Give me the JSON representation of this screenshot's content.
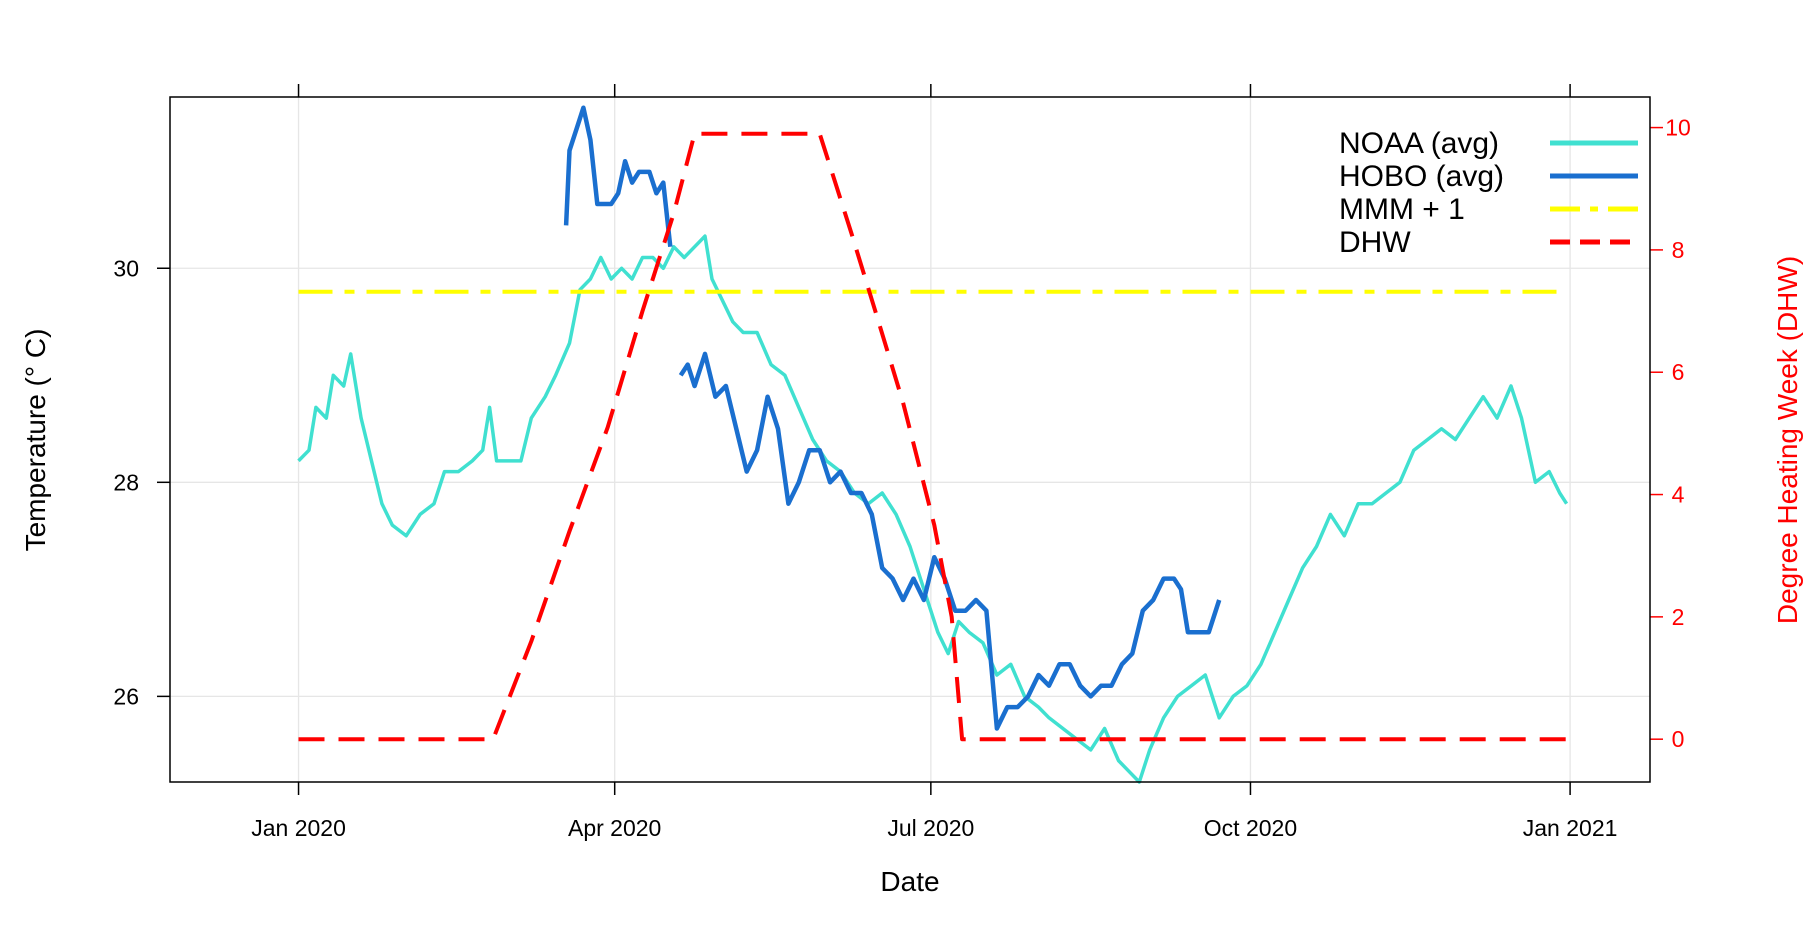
{
  "chart_data": {
    "type": "line",
    "xlabel": "Date",
    "ylabel": "Temperature (° C)",
    "ylabel_right": "Degree Heating Week (DHW)",
    "x_range": [
      "2019-11-25",
      "2021-01-24"
    ],
    "ylim": [
      25.2,
      31.6
    ],
    "ylim_right": [
      -0.7,
      10.5
    ],
    "x_ticks": [
      {
        "date": "2020-01-01",
        "label": "Jan 2020"
      },
      {
        "date": "2020-04-01",
        "label": "Apr 2020"
      },
      {
        "date": "2020-07-01",
        "label": "Jul 2020"
      },
      {
        "date": "2020-10-01",
        "label": "Oct 2020"
      },
      {
        "date": "2021-01-01",
        "label": "Jan 2021"
      }
    ],
    "y_ticks": [
      26,
      28,
      30
    ],
    "y_ticks_right": [
      0,
      2,
      4,
      6,
      8,
      10
    ],
    "grid": true,
    "legend_position": "top-right",
    "series": [
      {
        "name": "NOAA (avg)",
        "axis": "left",
        "color": "#40E0D0",
        "dash": "solid",
        "points": [
          [
            "2020-01-01",
            28.2
          ],
          [
            "2020-01-04",
            28.3
          ],
          [
            "2020-01-06",
            28.7
          ],
          [
            "2020-01-09",
            28.6
          ],
          [
            "2020-01-11",
            29.0
          ],
          [
            "2020-01-14",
            28.9
          ],
          [
            "2020-01-16",
            29.2
          ],
          [
            "2020-01-19",
            28.6
          ],
          [
            "2020-01-22",
            28.2
          ],
          [
            "2020-01-25",
            27.8
          ],
          [
            "2020-01-28",
            27.6
          ],
          [
            "2020-02-01",
            27.5
          ],
          [
            "2020-02-05",
            27.7
          ],
          [
            "2020-02-09",
            27.8
          ],
          [
            "2020-02-12",
            28.1
          ],
          [
            "2020-02-16",
            28.1
          ],
          [
            "2020-02-20",
            28.2
          ],
          [
            "2020-02-23",
            28.3
          ],
          [
            "2020-02-25",
            28.7
          ],
          [
            "2020-02-27",
            28.2
          ],
          [
            "2020-03-01",
            28.2
          ],
          [
            "2020-03-05",
            28.2
          ],
          [
            "2020-03-08",
            28.6
          ],
          [
            "2020-03-12",
            28.8
          ],
          [
            "2020-03-15",
            29.0
          ],
          [
            "2020-03-19",
            29.3
          ],
          [
            "2020-03-22",
            29.8
          ],
          [
            "2020-03-25",
            29.9
          ],
          [
            "2020-03-28",
            30.1
          ],
          [
            "2020-03-31",
            29.9
          ],
          [
            "2020-04-03",
            30.0
          ],
          [
            "2020-04-06",
            29.9
          ],
          [
            "2020-04-09",
            30.1
          ],
          [
            "2020-04-12",
            30.1
          ],
          [
            "2020-04-15",
            30.0
          ],
          [
            "2020-04-18",
            30.2
          ],
          [
            "2020-04-21",
            30.1
          ],
          [
            "2020-04-24",
            30.2
          ],
          [
            "2020-04-27",
            30.3
          ],
          [
            "2020-04-29",
            29.9
          ],
          [
            "2020-05-02",
            29.7
          ],
          [
            "2020-05-05",
            29.5
          ],
          [
            "2020-05-08",
            29.4
          ],
          [
            "2020-05-12",
            29.4
          ],
          [
            "2020-05-16",
            29.1
          ],
          [
            "2020-05-20",
            29.0
          ],
          [
            "2020-05-24",
            28.7
          ],
          [
            "2020-05-28",
            28.4
          ],
          [
            "2020-06-01",
            28.2
          ],
          [
            "2020-06-05",
            28.1
          ],
          [
            "2020-06-09",
            27.9
          ],
          [
            "2020-06-13",
            27.8
          ],
          [
            "2020-06-17",
            27.9
          ],
          [
            "2020-06-21",
            27.7
          ],
          [
            "2020-06-25",
            27.4
          ],
          [
            "2020-06-29",
            27.0
          ],
          [
            "2020-07-03",
            26.6
          ],
          [
            "2020-07-06",
            26.4
          ],
          [
            "2020-07-09",
            26.7
          ],
          [
            "2020-07-12",
            26.6
          ],
          [
            "2020-07-16",
            26.5
          ],
          [
            "2020-07-20",
            26.2
          ],
          [
            "2020-07-24",
            26.3
          ],
          [
            "2020-07-28",
            26.0
          ],
          [
            "2020-08-01",
            25.9
          ],
          [
            "2020-08-04",
            25.8
          ],
          [
            "2020-08-08",
            25.7
          ],
          [
            "2020-08-12",
            25.6
          ],
          [
            "2020-08-16",
            25.5
          ],
          [
            "2020-08-20",
            25.7
          ],
          [
            "2020-08-24",
            25.4
          ],
          [
            "2020-08-27",
            25.3
          ],
          [
            "2020-08-30",
            25.2
          ],
          [
            "2020-09-02",
            25.5
          ],
          [
            "2020-09-06",
            25.8
          ],
          [
            "2020-09-10",
            26.0
          ],
          [
            "2020-09-14",
            26.1
          ],
          [
            "2020-09-18",
            26.2
          ],
          [
            "2020-09-22",
            25.8
          ],
          [
            "2020-09-26",
            26.0
          ],
          [
            "2020-09-30",
            26.1
          ],
          [
            "2020-10-04",
            26.3
          ],
          [
            "2020-10-08",
            26.6
          ],
          [
            "2020-10-12",
            26.9
          ],
          [
            "2020-10-16",
            27.2
          ],
          [
            "2020-10-20",
            27.4
          ],
          [
            "2020-10-24",
            27.7
          ],
          [
            "2020-10-28",
            27.5
          ],
          [
            "2020-11-01",
            27.8
          ],
          [
            "2020-11-05",
            27.8
          ],
          [
            "2020-11-09",
            27.9
          ],
          [
            "2020-11-13",
            28.0
          ],
          [
            "2020-11-17",
            28.3
          ],
          [
            "2020-11-21",
            28.4
          ],
          [
            "2020-11-25",
            28.5
          ],
          [
            "2020-11-29",
            28.4
          ],
          [
            "2020-12-03",
            28.6
          ],
          [
            "2020-12-07",
            28.8
          ],
          [
            "2020-12-11",
            28.6
          ],
          [
            "2020-12-15",
            28.9
          ],
          [
            "2020-12-18",
            28.6
          ],
          [
            "2020-12-22",
            28.0
          ],
          [
            "2020-12-26",
            28.1
          ],
          [
            "2020-12-29",
            27.9
          ],
          [
            "2020-12-31",
            27.8
          ]
        ]
      },
      {
        "name": "HOBO (avg)",
        "axis": "left",
        "color": "#1A6FCF",
        "dash": "solid",
        "segments": [
          [
            [
              "2020-03-18",
              30.4
            ],
            [
              "2020-03-19",
              31.1
            ],
            [
              "2020-03-21",
              31.3
            ],
            [
              "2020-03-23",
              31.5
            ],
            [
              "2020-03-25",
              31.2
            ],
            [
              "2020-03-27",
              30.6
            ],
            [
              "2020-03-29",
              30.6
            ],
            [
              "2020-03-31",
              30.6
            ],
            [
              "2020-04-02",
              30.7
            ],
            [
              "2020-04-04",
              31.0
            ],
            [
              "2020-04-06",
              30.8
            ],
            [
              "2020-04-08",
              30.9
            ],
            [
              "2020-04-11",
              30.9
            ],
            [
              "2020-04-13",
              30.7
            ],
            [
              "2020-04-15",
              30.8
            ],
            [
              "2020-04-17",
              30.2
            ]
          ],
          [
            [
              "2020-04-20",
              29.0
            ],
            [
              "2020-04-22",
              29.1
            ],
            [
              "2020-04-24",
              28.9
            ],
            [
              "2020-04-27",
              29.2
            ],
            [
              "2020-04-30",
              28.8
            ],
            [
              "2020-05-03",
              28.9
            ],
            [
              "2020-05-06",
              28.5
            ],
            [
              "2020-05-09",
              28.1
            ],
            [
              "2020-05-12",
              28.3
            ],
            [
              "2020-05-15",
              28.8
            ],
            [
              "2020-05-18",
              28.5
            ],
            [
              "2020-05-21",
              27.8
            ],
            [
              "2020-05-24",
              28.0
            ],
            [
              "2020-05-27",
              28.3
            ],
            [
              "2020-05-30",
              28.3
            ],
            [
              "2020-06-02",
              28.0
            ],
            [
              "2020-06-05",
              28.1
            ],
            [
              "2020-06-08",
              27.9
            ],
            [
              "2020-06-11",
              27.9
            ],
            [
              "2020-06-14",
              27.7
            ],
            [
              "2020-06-17",
              27.2
            ],
            [
              "2020-06-20",
              27.1
            ],
            [
              "2020-06-23",
              26.9
            ],
            [
              "2020-06-26",
              27.1
            ],
            [
              "2020-06-29",
              26.9
            ],
            [
              "2020-07-02",
              27.3
            ],
            [
              "2020-07-05",
              27.1
            ],
            [
              "2020-07-08",
              26.8
            ],
            [
              "2020-07-11",
              26.8
            ],
            [
              "2020-07-14",
              26.9
            ],
            [
              "2020-07-17",
              26.8
            ],
            [
              "2020-07-20",
              25.7
            ],
            [
              "2020-07-23",
              25.9
            ],
            [
              "2020-07-26",
              25.9
            ],
            [
              "2020-07-29",
              26.0
            ],
            [
              "2020-08-01",
              26.2
            ],
            [
              "2020-08-04",
              26.1
            ],
            [
              "2020-08-07",
              26.3
            ],
            [
              "2020-08-10",
              26.3
            ],
            [
              "2020-08-13",
              26.1
            ],
            [
              "2020-08-16",
              26.0
            ],
            [
              "2020-08-19",
              26.1
            ],
            [
              "2020-08-22",
              26.1
            ],
            [
              "2020-08-25",
              26.3
            ],
            [
              "2020-08-28",
              26.4
            ],
            [
              "2020-08-31",
              26.8
            ],
            [
              "2020-09-03",
              26.9
            ],
            [
              "2020-09-06",
              27.1
            ],
            [
              "2020-09-09",
              27.1
            ],
            [
              "2020-09-11",
              27.0
            ],
            [
              "2020-09-13",
              26.6
            ],
            [
              "2020-09-16",
              26.6
            ],
            [
              "2020-09-19",
              26.6
            ],
            [
              "2020-09-22",
              26.9
            ]
          ]
        ]
      },
      {
        "name": "MMM + 1",
        "axis": "left",
        "color": "#FFFF00",
        "dash": "dashdot",
        "points": [
          [
            "2020-01-01",
            29.78
          ],
          [
            "2020-12-31",
            29.78
          ]
        ]
      },
      {
        "name": "DHW",
        "axis": "right",
        "color": "#FF0000",
        "dash": "dashed",
        "points": [
          [
            "2020-01-01",
            0
          ],
          [
            "2020-02-26",
            0
          ],
          [
            "2020-03-08",
            1.6
          ],
          [
            "2020-03-19",
            3.4
          ],
          [
            "2020-03-30",
            5.1
          ],
          [
            "2020-04-09",
            7.0
          ],
          [
            "2020-04-18",
            8.6
          ],
          [
            "2020-04-24",
            9.9
          ],
          [
            "2020-05-30",
            9.9
          ],
          [
            "2020-06-08",
            8.3
          ],
          [
            "2020-06-15",
            7.0
          ],
          [
            "2020-06-23",
            5.5
          ],
          [
            "2020-07-02",
            3.5
          ],
          [
            "2020-07-07",
            2.0
          ],
          [
            "2020-07-10",
            0.0
          ],
          [
            "2020-12-31",
            0
          ]
        ]
      }
    ]
  }
}
